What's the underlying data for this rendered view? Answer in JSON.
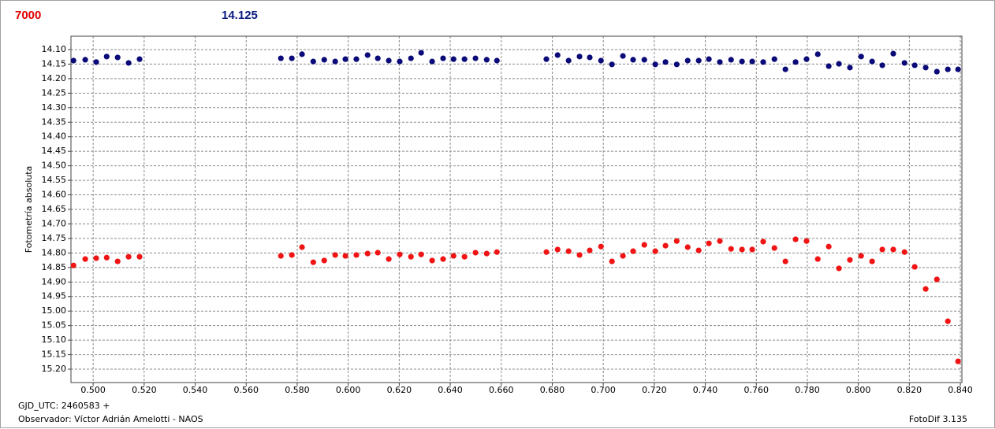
{
  "header": {
    "left_label": "7000",
    "left_color": "#e00000",
    "right_label": "14.125",
    "right_color": "#0a1a80"
  },
  "footer": {
    "date_line": "GJD_UTC: 2460583 +",
    "observer": "Observador: Víctor Adrián Amelotti - NAOS",
    "version": "FotoDif 3.135"
  },
  "chart_data": {
    "type": "scatter",
    "y_label": "Fotometría absoluta",
    "grid": true,
    "y_inverted": true,
    "xlim": [
      0.4913,
      0.8406
    ],
    "ylim": [
      14.054,
      15.246
    ],
    "xticks": [
      {
        "value": 0.5,
        "label": "0.500"
      },
      {
        "value": 0.52,
        "label": "0.520"
      },
      {
        "value": 0.54,
        "label": "0.540"
      },
      {
        "value": 0.56,
        "label": "0.560"
      },
      {
        "value": 0.58,
        "label": "0.580"
      },
      {
        "value": 0.6,
        "label": "0.600"
      },
      {
        "value": 0.62,
        "label": "0.620"
      },
      {
        "value": 0.64,
        "label": "0.640"
      },
      {
        "value": 0.66,
        "label": "0.660"
      },
      {
        "value": 0.68,
        "label": "0.680"
      },
      {
        "value": 0.7,
        "label": "0.700"
      },
      {
        "value": 0.72,
        "label": "0.720"
      },
      {
        "value": 0.74,
        "label": "0.740"
      },
      {
        "value": 0.76,
        "label": "0.760"
      },
      {
        "value": 0.78,
        "label": "0.780"
      },
      {
        "value": 0.8,
        "label": "0.800"
      },
      {
        "value": 0.82,
        "label": "0.820"
      },
      {
        "value": 0.84,
        "label": "0.840"
      }
    ],
    "yticks": [
      {
        "value": 14.1,
        "label": "14.10"
      },
      14.15,
      {
        "value": 14.2,
        "label": "14.20"
      },
      14.25,
      {
        "value": 14.3,
        "label": "14.30"
      },
      14.35,
      {
        "value": 14.4,
        "label": "14.40"
      },
      14.45,
      {
        "value": 14.5,
        "label": "14.50"
      },
      14.55,
      {
        "value": 14.6,
        "label": "14.60"
      },
      14.65,
      {
        "value": 14.7,
        "label": "14.70"
      },
      14.75,
      {
        "value": 14.8,
        "label": "14.80"
      },
      14.85,
      {
        "value": 14.9,
        "label": "14.90"
      },
      14.95,
      {
        "value": 15.0,
        "label": "15.00"
      },
      15.05,
      {
        "value": 15.1,
        "label": "15.10"
      },
      15.15,
      {
        "value": 15.2,
        "label": "15.20"
      }
    ],
    "series": [
      {
        "color": "#0a0a78",
        "x": [
          0.4923,
          0.4969,
          0.5012,
          0.5053,
          0.5096,
          0.5139,
          0.5182,
          0.5736,
          0.5779,
          0.5819,
          0.5863,
          0.5906,
          0.5949,
          0.5989,
          0.6032,
          0.6076,
          0.6116,
          0.6159,
          0.6202,
          0.6246,
          0.6286,
          0.6329,
          0.6372,
          0.6413,
          0.6456,
          0.6499,
          0.6543,
          0.6583,
          0.6777,
          0.6821,
          0.6864,
          0.6907,
          0.6947,
          0.6991,
          0.7034,
          0.7077,
          0.7117,
          0.7161,
          0.7204,
          0.7244,
          0.7288,
          0.7331,
          0.7374,
          0.7414,
          0.7457,
          0.7501,
          0.7544,
          0.7584,
          0.7627,
          0.7671,
          0.7714,
          0.7754,
          0.7797,
          0.7841,
          0.7884,
          0.7924,
          0.7967,
          0.8011,
          0.8054,
          0.8094,
          0.8137,
          0.8181,
          0.8221,
          0.8264,
          0.8308,
          0.8351,
          0.8391
        ],
        "values": [
          14.138,
          14.135,
          14.143,
          14.124,
          14.127,
          14.146,
          14.133,
          14.13,
          14.13,
          14.116,
          14.141,
          14.135,
          14.141,
          14.133,
          14.133,
          14.119,
          14.13,
          14.138,
          14.141,
          14.13,
          14.111,
          14.141,
          14.13,
          14.133,
          14.133,
          14.13,
          14.135,
          14.138,
          14.133,
          14.119,
          14.138,
          14.124,
          14.127,
          14.138,
          14.151,
          14.122,
          14.135,
          14.135,
          14.151,
          14.143,
          14.151,
          14.138,
          14.138,
          14.133,
          14.143,
          14.135,
          14.141,
          14.141,
          14.143,
          14.133,
          14.168,
          14.143,
          14.133,
          14.116,
          14.157,
          14.149,
          14.162,
          14.124,
          14.141,
          14.154,
          14.114,
          14.146,
          14.154,
          14.162,
          14.176,
          14.168,
          14.168
        ]
      },
      {
        "color": "#f01414",
        "x": [
          0.4923,
          0.4969,
          0.5012,
          0.5053,
          0.5096,
          0.5139,
          0.5182,
          0.5736,
          0.5779,
          0.5819,
          0.5863,
          0.5906,
          0.5949,
          0.5989,
          0.6032,
          0.6076,
          0.6116,
          0.6159,
          0.6202,
          0.6246,
          0.6286,
          0.6329,
          0.6372,
          0.6413,
          0.6456,
          0.6499,
          0.6543,
          0.6583,
          0.6777,
          0.6821,
          0.6864,
          0.6907,
          0.6947,
          0.6991,
          0.7034,
          0.7077,
          0.7117,
          0.7161,
          0.7204,
          0.7244,
          0.7288,
          0.7331,
          0.7374,
          0.7414,
          0.7457,
          0.7501,
          0.7544,
          0.7584,
          0.7627,
          0.7671,
          0.7714,
          0.7754,
          0.7797,
          0.7841,
          0.7884,
          0.7924,
          0.7967,
          0.8011,
          0.8054,
          0.8094,
          0.8137,
          0.8181,
          0.8221,
          0.8264,
          0.8308,
          0.8351,
          0.8391
        ],
        "values": [
          14.843,
          14.821,
          14.818,
          14.816,
          14.829,
          14.813,
          14.813,
          14.81,
          14.807,
          14.78,
          14.832,
          14.826,
          14.807,
          14.81,
          14.807,
          14.802,
          14.799,
          14.821,
          14.805,
          14.813,
          14.805,
          14.826,
          14.821,
          14.81,
          14.813,
          14.799,
          14.802,
          14.797,
          14.797,
          14.788,
          14.794,
          14.807,
          14.791,
          14.778,
          14.829,
          14.81,
          14.794,
          14.772,
          14.794,
          14.775,
          14.759,
          14.78,
          14.791,
          14.767,
          14.759,
          14.786,
          14.788,
          14.788,
          14.761,
          14.783,
          14.829,
          14.753,
          14.759,
          14.821,
          14.778,
          14.853,
          14.824,
          14.81,
          14.829,
          14.788,
          14.788,
          14.797,
          14.848,
          14.924,
          14.891,
          15.035,
          15.173
        ]
      }
    ]
  }
}
